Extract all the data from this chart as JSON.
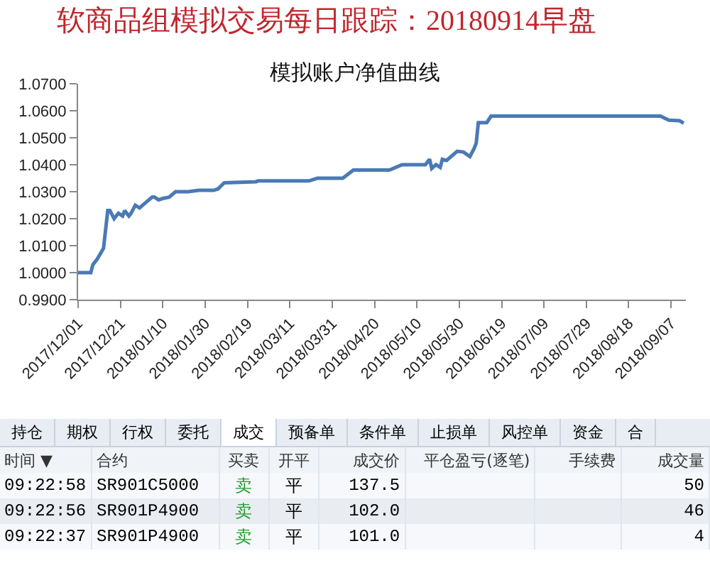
{
  "chart_data": [
    {
      "type": "line",
      "title": "软商品组模拟交易每日跟踪：20180914早盘",
      "subtitle": "模拟账户净值曲线",
      "x": [
        "2017-12-01",
        "2017-12-07",
        "2017-12-08",
        "2017-12-10",
        "2017-12-13",
        "2017-12-15",
        "2017-12-16",
        "2017-12-18",
        "2017-12-20",
        "2017-12-22",
        "2017-12-23",
        "2017-12-25",
        "2017-12-26",
        "2017-12-28",
        "2017-12-30",
        "2018-01-02",
        "2018-01-05",
        "2018-01-06",
        "2018-01-08",
        "2018-01-10",
        "2018-01-13",
        "2018-01-16",
        "2018-01-22",
        "2018-01-27",
        "2018-02-03",
        "2018-02-05",
        "2018-02-08",
        "2018-02-23",
        "2018-02-24",
        "2018-03-20",
        "2018-03-24",
        "2018-04-05",
        "2018-04-10",
        "2018-04-27",
        "2018-05-03",
        "2018-05-14",
        "2018-05-16",
        "2018-05-17",
        "2018-05-19",
        "2018-05-21",
        "2018-05-22",
        "2018-05-24",
        "2018-05-29",
        "2018-06-01",
        "2018-06-04",
        "2018-06-06",
        "2018-06-07",
        "2018-06-08",
        "2018-06-12",
        "2018-06-14",
        "2018-09-02",
        "2018-09-06",
        "2018-09-11",
        "2018-09-13"
      ],
      "series": [
        {
          "color": "#4a7ab5",
          "values": [
            1.0,
            1.0,
            1.003,
            1.005,
            1.009,
            1.023,
            1.023,
            1.02,
            1.022,
            1.021,
            1.023,
            1.021,
            1.022,
            1.025,
            1.024,
            1.026,
            1.028,
            1.028,
            1.027,
            1.0275,
            1.028,
            1.03,
            1.03,
            1.0305,
            1.0305,
            1.031,
            1.0333,
            1.0337,
            1.034,
            1.034,
            1.035,
            1.035,
            1.038,
            1.038,
            1.04,
            1.04,
            1.042,
            1.0386,
            1.04,
            1.039,
            1.042,
            1.0416,
            1.045,
            1.0447,
            1.043,
            1.046,
            1.048,
            1.0556,
            1.0556,
            1.058,
            1.058,
            1.0565,
            1.0563,
            1.0554
          ]
        }
      ],
      "xlim": [
        "2017-12-01",
        "2018-09-14"
      ],
      "xticks": [
        {
          "value": "2017-12-01",
          "label": "2017/12/01"
        },
        {
          "value": "2017-12-21",
          "label": "2017/12/21"
        },
        {
          "value": "2018-01-10",
          "label": "2018/01/10"
        },
        {
          "value": "2018-01-30",
          "label": "2018/01/30"
        },
        {
          "value": "2018-02-19",
          "label": "2018/02/19"
        },
        {
          "value": "2018-03-11",
          "label": "2018/03/11"
        },
        {
          "value": "2018-03-31",
          "label": "2018/03/31"
        },
        {
          "value": "2018-04-20",
          "label": "2018/04/20"
        },
        {
          "value": "2018-05-10",
          "label": "2018/05/10"
        },
        {
          "value": "2018-05-30",
          "label": "2018/05/30"
        },
        {
          "value": "2018-06-19",
          "label": "2018/06/19"
        },
        {
          "value": "2018-07-09",
          "label": "2018/07/09"
        },
        {
          "value": "2018-07-29",
          "label": "2018/07/29"
        },
        {
          "value": "2018-08-18",
          "label": "2018/08/18"
        },
        {
          "value": "2018-09-07",
          "label": "2018/09/07"
        }
      ],
      "ylim": [
        0.99,
        1.07
      ],
      "yticks": [
        {
          "value": 0.99,
          "label": "0.9900"
        },
        {
          "value": 1.0,
          "label": "1.0000"
        },
        {
          "value": 1.01,
          "label": "1.0100"
        },
        {
          "value": 1.02,
          "label": "1.0200"
        },
        {
          "value": 1.03,
          "label": "1.0300"
        },
        {
          "value": 1.04,
          "label": "1.0400"
        },
        {
          "value": 1.05,
          "label": "1.0500"
        },
        {
          "value": 1.06,
          "label": "1.0600"
        },
        {
          "value": 1.07,
          "label": "1.0700"
        }
      ],
      "grid": false,
      "legend": false,
      "marker": "none",
      "line_style": "solid"
    },
    {
      "type": "other",
      "annotations": [
        "持仓",
        "期权",
        "行权",
        "委托",
        "成交",
        "预备单",
        "条件单",
        "止损单",
        "风控单",
        "资金",
        "合",
        "时间 ▼",
        "合约",
        "买卖",
        "开平",
        "成交价",
        "平仓盈亏(逐笔)",
        "手续费",
        "成交量",
        "09:22:58",
        "SR901C5000",
        "卖",
        "平",
        "137.5",
        "50",
        "09:22:56",
        "SR901P4900",
        "卖",
        "平",
        "102.0",
        "46",
        "09:22:37",
        "SR901P4900",
        "卖",
        "平",
        "101.0",
        "4"
      ]
    }
  ]
}
